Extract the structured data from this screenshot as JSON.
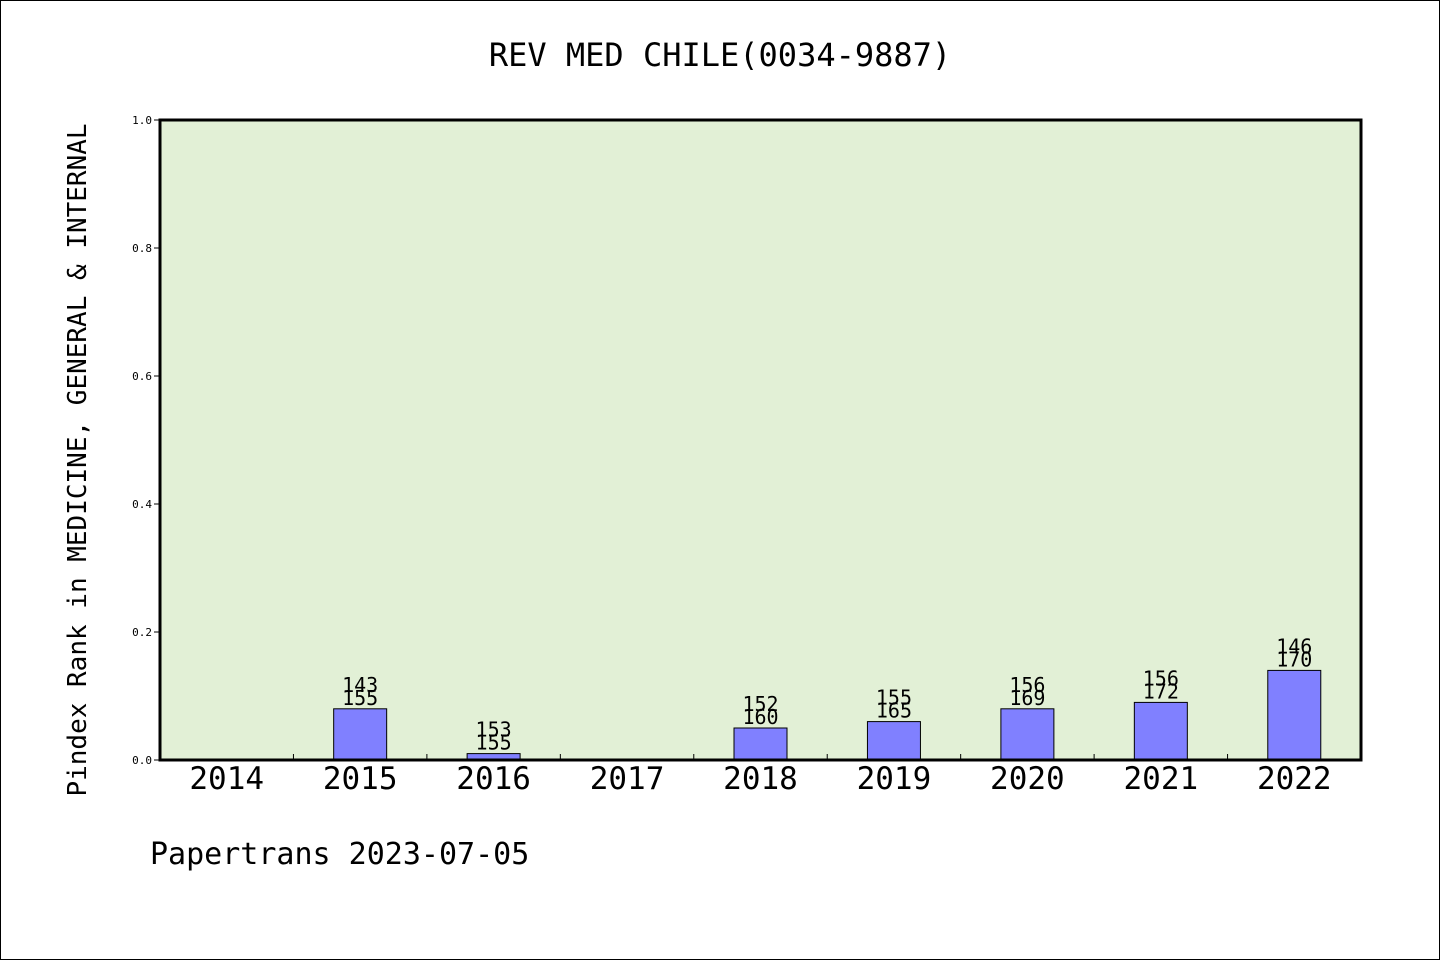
{
  "chart_data": {
    "type": "bar",
    "title": "REV MED CHILE(0034-9887)",
    "ylabel": "Pindex Rank in MEDICINE, GENERAL & INTERNAL",
    "xlabel": "",
    "categories": [
      "2014",
      "2015",
      "2016",
      "2017",
      "2018",
      "2019",
      "2020",
      "2021",
      "2022"
    ],
    "values": [
      0,
      0.08,
      0.01,
      0,
      0.05,
      0.06,
      0.08,
      0.09,
      0.14
    ],
    "label_top": [
      "",
      "143",
      "153",
      "",
      "152",
      "155",
      "156",
      "156",
      "146"
    ],
    "label_bottom": [
      "",
      "155",
      "155",
      "",
      "160",
      "165",
      "169",
      "172",
      "170"
    ],
    "ylim": [
      0,
      1.0
    ],
    "yticks": [
      "0.0",
      "0.2",
      "0.4",
      "0.6",
      "0.8",
      "1.0"
    ],
    "grid": false,
    "colors": {
      "plot_background": "#e2f0d6",
      "bar_fill": "#8080ff",
      "bar_stroke": "#000000"
    }
  },
  "footer": {
    "text": "Papertrans 2023-07-05"
  }
}
